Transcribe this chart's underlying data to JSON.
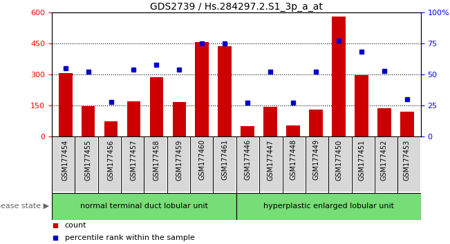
{
  "title": "GDS2739 / Hs.284297.2.S1_3p_a_at",
  "samples": [
    "GSM177454",
    "GSM177455",
    "GSM177456",
    "GSM177457",
    "GSM177458",
    "GSM177459",
    "GSM177460",
    "GSM177461",
    "GSM177446",
    "GSM177447",
    "GSM177448",
    "GSM177449",
    "GSM177450",
    "GSM177451",
    "GSM177452",
    "GSM177453"
  ],
  "counts": [
    308,
    148,
    75,
    170,
    287,
    168,
    457,
    437,
    50,
    143,
    55,
    130,
    578,
    296,
    137,
    122
  ],
  "percentiles": [
    55,
    52,
    28,
    54,
    58,
    54,
    75,
    75,
    27,
    52,
    27,
    52,
    77,
    68,
    53,
    30
  ],
  "group1_label": "normal terminal duct lobular unit",
  "group2_label": "hyperplastic enlarged lobular unit",
  "group1_count": 8,
  "group2_count": 8,
  "bar_color": "#cc0000",
  "dot_color": "#0000cc",
  "ylim_left": [
    0,
    600
  ],
  "ylim_right": [
    0,
    100
  ],
  "yticks_left": [
    0,
    150,
    300,
    450,
    600
  ],
  "yticks_right": [
    0,
    25,
    50,
    75,
    100
  ],
  "disease_state_label": "disease state",
  "legend_count_label": "count",
  "legend_percentile_label": "percentile rank within the sample",
  "group1_color": "#77dd77",
  "group2_color": "#77dd77",
  "title_fontsize": 10,
  "tick_fontsize": 8,
  "label_fontsize": 7,
  "group_fontsize": 8
}
